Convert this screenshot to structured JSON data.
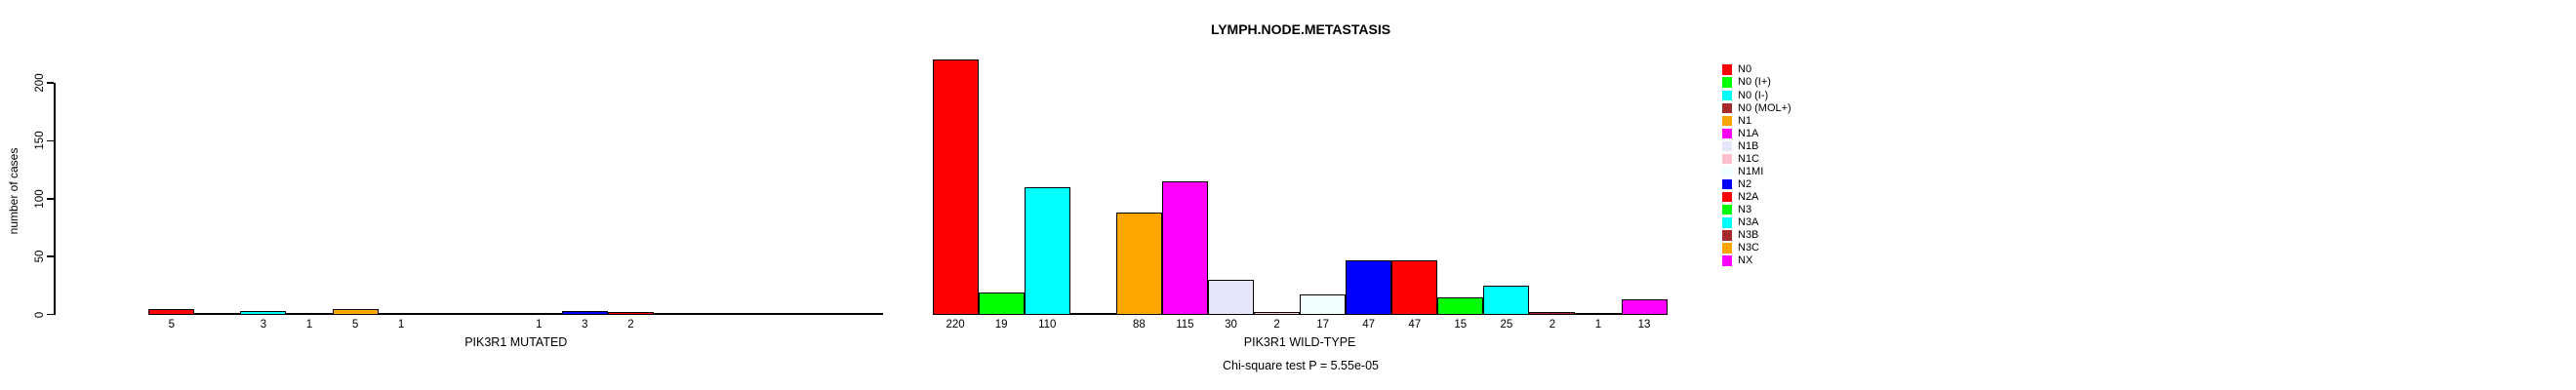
{
  "title": "LYMPH.NODE.METASTASIS",
  "ylabel": "number of cases",
  "annotation": "Chi-square test P = 5.55e-05",
  "chart_data": {
    "type": "bar",
    "title": "LYMPH.NODE.METASTASIS",
    "xlabel": "",
    "ylabel": "number of cases",
    "ylim": [
      0,
      220
    ],
    "yticks": [
      0,
      50,
      100,
      150,
      200
    ],
    "grid": false,
    "legend_position": "right",
    "annotation": "Chi-square test P = 5.55e-05",
    "categories": [
      "N0",
      "N0 (I+)",
      "N0 (I-)",
      "N0 (MOL+)",
      "N1",
      "N1A",
      "N1B",
      "N1C",
      "N1MI",
      "N2",
      "N2A",
      "N3",
      "N3A",
      "N3B",
      "N3C",
      "NX"
    ],
    "colors": [
      "#FF0000",
      "#00FF00",
      "#00FFFF",
      "#A52A2A",
      "#FFA500",
      "#FF00FF",
      "#E6E6FA",
      "#FFC0CB",
      "#F0FFFF",
      "#0000FF",
      "#FF0000",
      "#00FF00",
      "#00FFFF",
      "#A52A2A",
      "#FFA500",
      "#FF00FF"
    ],
    "series": [
      {
        "name": "PIK3R1 MUTATED",
        "values": [
          5,
          0,
          3,
          1,
          5,
          1,
          0,
          0,
          1,
          3,
          2,
          0,
          0,
          0,
          0,
          0
        ]
      },
      {
        "name": "PIK3R1 WILD-TYPE",
        "values": [
          220,
          19,
          110,
          0,
          88,
          115,
          30,
          2,
          17,
          47,
          47,
          15,
          25,
          2,
          1,
          13
        ]
      }
    ],
    "bar_value_labels_shown": true
  }
}
